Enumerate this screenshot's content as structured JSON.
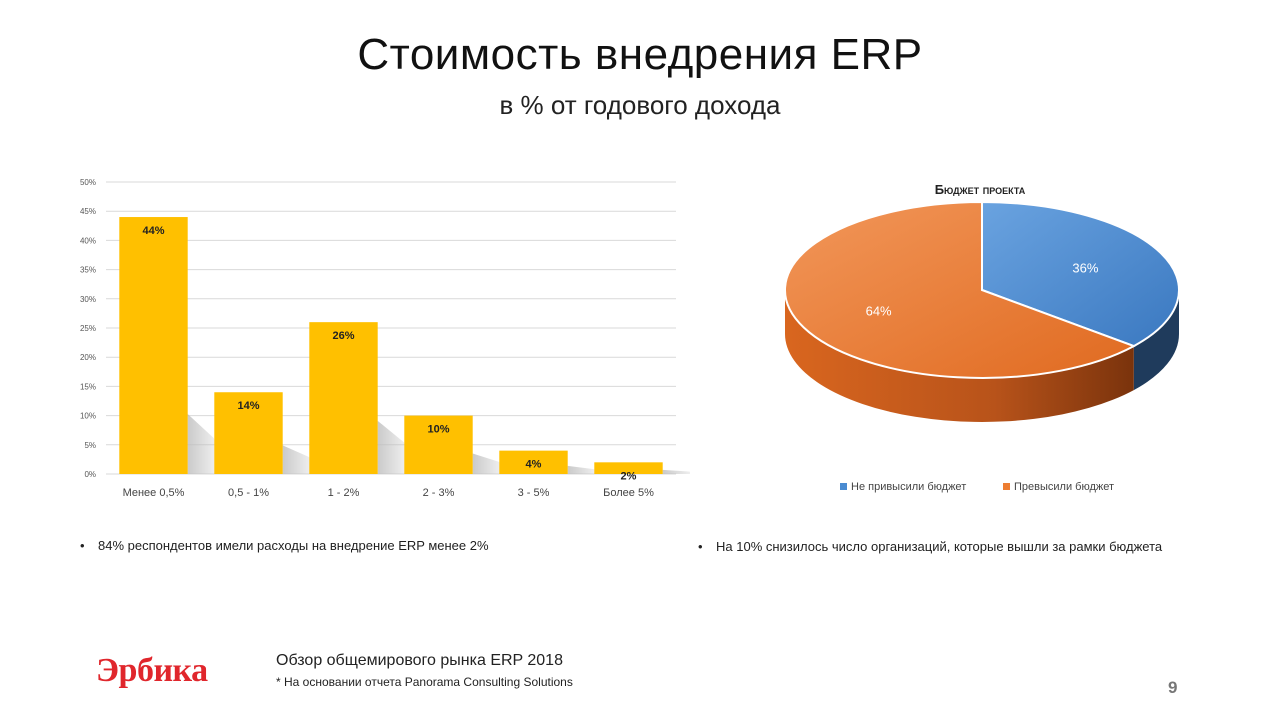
{
  "slide": {
    "title": "Стоимость внедрения ERP",
    "subtitle": "в % от годового дохода",
    "page_number": "9"
  },
  "bullets": {
    "left": "84% респондентов  имели расходы на внедрение ERP менее 2%",
    "right": "На 10% снизилось число организаций, которые  вышли за рамки бюджета"
  },
  "footer": {
    "logo": "Эрбика",
    "title": "Обзор общемирового рынка ERP 2018",
    "note": "* На основании отчета Panorama Consulting Solutions"
  },
  "colors": {
    "bar": "#FFC000",
    "pie_blue": "#4A8BD1",
    "pie_orange": "#ED7D31"
  },
  "chart_data": [
    {
      "type": "bar",
      "title": "",
      "categories": [
        "Менее  0,5%",
        "0,5 - 1%",
        "1 - 2%",
        "2 - 3%",
        "3 - 5%",
        "Более 5%"
      ],
      "values": [
        44,
        14,
        26,
        10,
        4,
        2
      ],
      "data_labels": [
        "44%",
        "14%",
        "26%",
        "10%",
        "4%",
        "2%"
      ],
      "ylim": [
        0,
        50
      ],
      "yticks": [
        "0%",
        "5%",
        "10%",
        "15%",
        "20%",
        "25%",
        "30%",
        "35%",
        "40%",
        "45%",
        "50%"
      ],
      "grid": true,
      "xlabel": "",
      "ylabel": ""
    },
    {
      "type": "pie",
      "title": "Бюджет проекта",
      "labels": [
        "Не привысили бюджет",
        "Превысили бюджет"
      ],
      "values": [
        36,
        64
      ],
      "data_labels": [
        "36%",
        "64%"
      ],
      "legend": "bottom"
    }
  ]
}
